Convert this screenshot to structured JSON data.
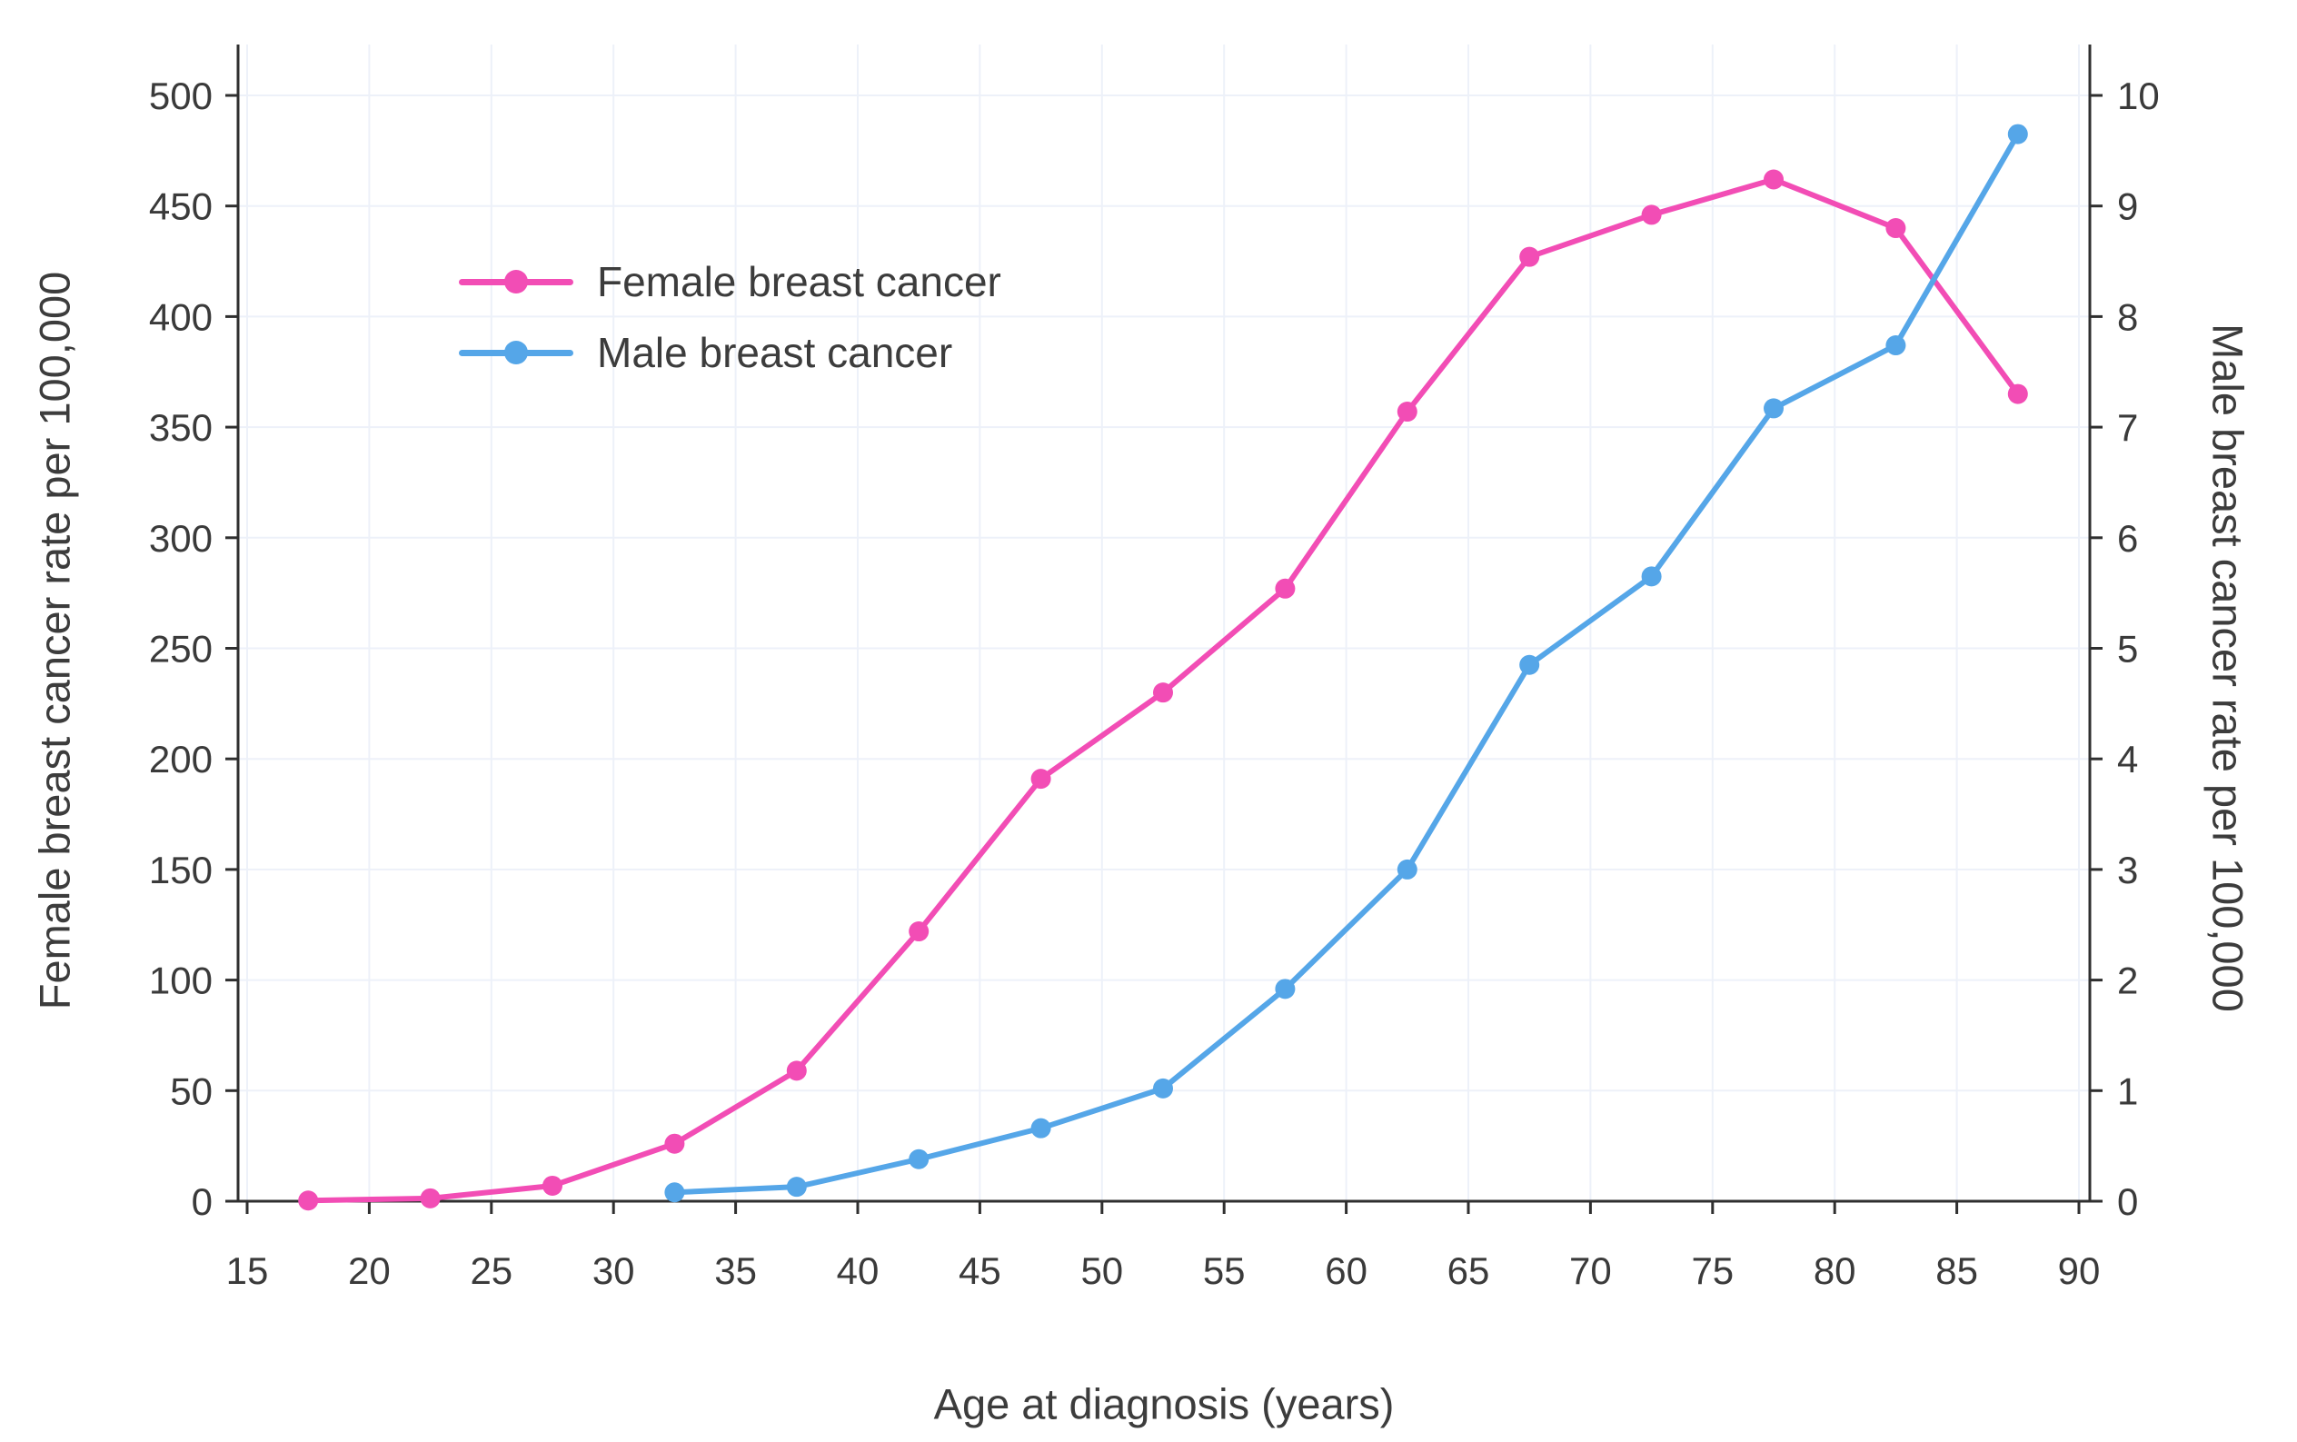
{
  "chart_data": {
    "type": "line",
    "title": "",
    "xlabel": "Age at diagnosis (years)",
    "ylabel_left": "Female breast cancer rate per 100,000",
    "ylabel_right": "Male breast cancer rate per 100,000",
    "xlim": [
      15,
      90
    ],
    "ylim_left": [
      0,
      500
    ],
    "ylim_right": [
      0,
      10
    ],
    "x_ticks": [
      15,
      20,
      25,
      30,
      35,
      40,
      45,
      50,
      55,
      60,
      65,
      70,
      75,
      80,
      85,
      90
    ],
    "y_left_ticks": [
      0,
      50,
      100,
      150,
      200,
      250,
      300,
      350,
      400,
      450,
      500
    ],
    "y_right_ticks": [
      0,
      1,
      2,
      3,
      4,
      5,
      6,
      7,
      8,
      9,
      10
    ],
    "grid": true,
    "legend_position": "upper-left-inside",
    "axis_color": "#2f2f2f",
    "grid_color": "#edf1f9",
    "text_color": "#3a3a3a",
    "series": [
      {
        "name": "Female breast cancer",
        "axis": "left",
        "color": "#f24db5",
        "marker": "circle",
        "x": [
          17.5,
          22.5,
          27.5,
          32.5,
          37.5,
          42.5,
          47.5,
          52.5,
          57.5,
          62.5,
          67.5,
          72.5,
          77.5,
          82.5,
          87.5
        ],
        "values": [
          0.3,
          1.3,
          7,
          26,
          59,
          122,
          191,
          230,
          277,
          357,
          427,
          446,
          462,
          440,
          365
        ]
      },
      {
        "name": "Male breast cancer",
        "axis": "right",
        "color": "#55a6e8",
        "marker": "circle",
        "x": [
          32.5,
          37.5,
          42.5,
          47.5,
          52.5,
          57.5,
          62.5,
          67.5,
          72.5,
          77.5,
          82.5,
          87.5
        ],
        "values": [
          0.08,
          0.13,
          0.38,
          0.66,
          1.02,
          1.92,
          3.0,
          4.85,
          5.65,
          7.17,
          7.74,
          9.65
        ]
      }
    ]
  }
}
